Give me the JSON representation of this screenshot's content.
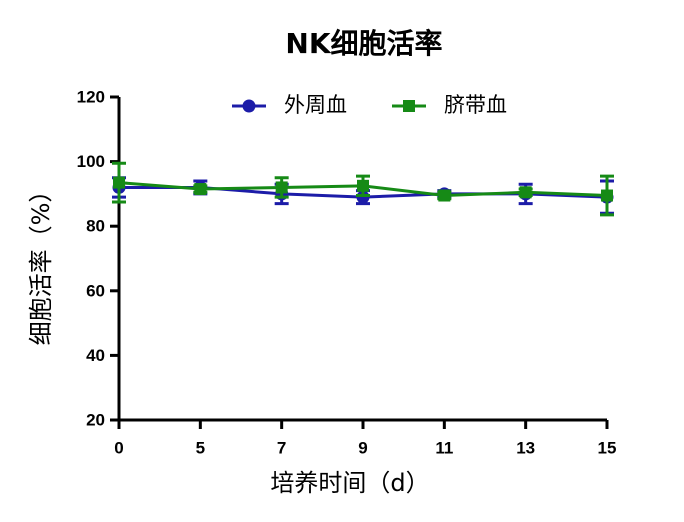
{
  "chart_data": {
    "type": "line",
    "title": "NK细胞活率",
    "x_label": "培养时间（d）",
    "y_label": "细胞活率（%）",
    "categories": [
      "0",
      "5",
      "7",
      "9",
      "11",
      "13",
      "15"
    ],
    "ylim": [
      20,
      120
    ],
    "yticks": [
      20,
      40,
      60,
      80,
      100,
      120
    ],
    "series": [
      {
        "name": "外周血",
        "color": "#1c1ca8",
        "marker": "circle",
        "values": [
          92,
          92,
          90,
          89,
          90,
          90,
          89
        ],
        "errors": [
          3,
          2,
          3,
          2,
          1,
          3,
          5
        ]
      },
      {
        "name": "脐带血",
        "color": "#168a16",
        "marker": "square",
        "values": [
          93.5,
          91.5,
          92,
          92.5,
          89.5,
          90.5,
          89.5
        ],
        "errors": [
          6,
          1,
          3,
          3,
          1,
          1,
          6
        ]
      }
    ],
    "legend": "top"
  }
}
